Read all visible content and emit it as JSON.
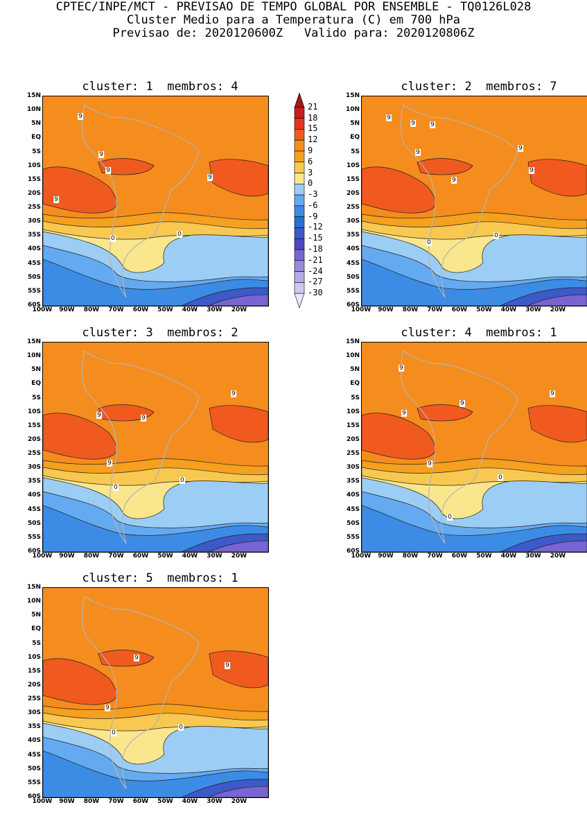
{
  "header": {
    "line1": "CPTEC/INPE/MCT - PREVISAO DE TEMPO GLOBAL POR ENSEMBLE - TQ0126L028",
    "line2": "Cluster Medio para a Temperatura (C) em 700 hPa",
    "line3": "Previsao de: 2020120600Z   Valido para: 2020120806Z"
  },
  "panels": [
    {
      "title": "cluster: 1  membros: 4"
    },
    {
      "title": "cluster: 2  membros: 7"
    },
    {
      "title": "cluster: 3  membros: 2"
    },
    {
      "title": "cluster: 4  membros: 1"
    },
    {
      "title": "cluster: 5  membros: 1"
    }
  ],
  "lat_labels": [
    "15N",
    "10N",
    "5N",
    "EQ",
    "5S",
    "10S",
    "15S",
    "20S",
    "25S",
    "30S",
    "35S",
    "40S",
    "45S",
    "50S",
    "55S",
    "60S"
  ],
  "lon_labels": [
    "100W",
    "90W",
    "80W",
    "70W",
    "60W",
    "50W",
    "40W",
    "30W",
    "20W"
  ],
  "contour_tags": [
    "9",
    "0"
  ],
  "colorbar": {
    "levels": [
      "21",
      "18",
      "15",
      "12",
      "9",
      "6",
      "3",
      "0",
      "-3",
      "-6",
      "-9",
      "-12",
      "-15",
      "-18",
      "-21",
      "-24",
      "-27",
      "-30"
    ],
    "colors": [
      "#a01818",
      "#c81e1e",
      "#e6321e",
      "#f05a1e",
      "#f58c1e",
      "#f5a01e",
      "#f8c850",
      "#fae68c",
      "#9ccdf5",
      "#64aaf0",
      "#3c8ce6",
      "#2870d2",
      "#3c5ac8",
      "#5046c3",
      "#7864d2",
      "#968cdc",
      "#b4aae6",
      "#d2c8f0",
      "#ebe6fa"
    ]
  }
}
